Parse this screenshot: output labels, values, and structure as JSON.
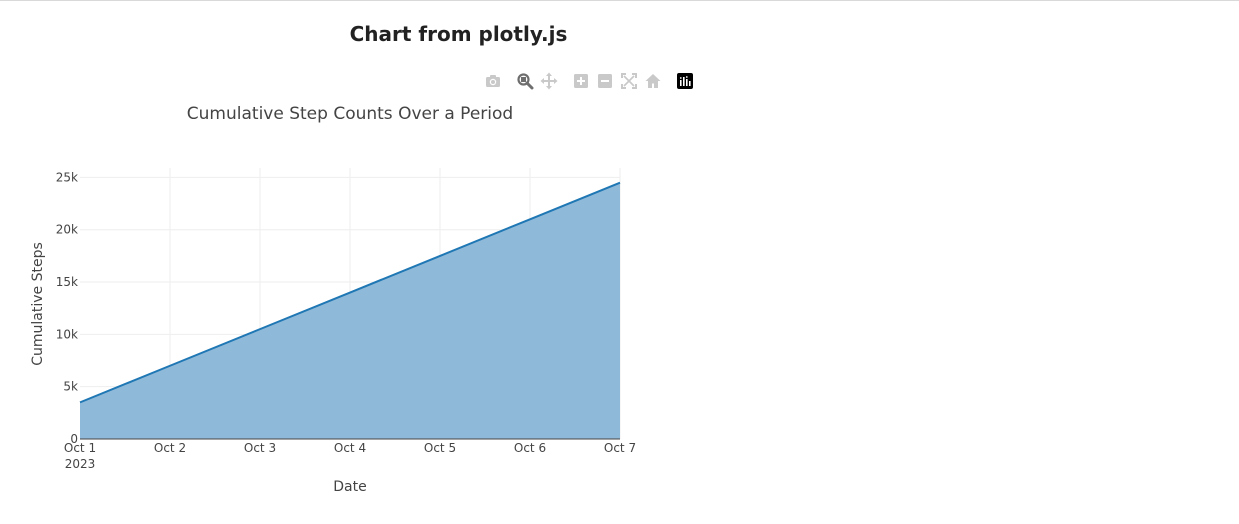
{
  "page": {
    "heading": "Chart from plotly.js"
  },
  "modebar": {
    "buttons": [
      {
        "name": "camera-icon"
      },
      {
        "name": "zoom-icon"
      },
      {
        "name": "pan-icon"
      },
      {
        "name": "zoom-in-icon"
      },
      {
        "name": "zoom-out-icon"
      },
      {
        "name": "autoscale-icon"
      },
      {
        "name": "reset-axes-icon"
      },
      {
        "name": "plotly-logo-icon"
      }
    ],
    "colors": {
      "inactive": "#c9c9c9",
      "active": "#6e6e6e",
      "logo": "#000000"
    }
  },
  "chart_data": {
    "type": "area",
    "title": "Cumulative Step Counts Over a Period",
    "xlabel": "Date",
    "ylabel": "Cumulative Steps",
    "x": [
      "2023-10-01",
      "2023-10-02",
      "2023-10-03",
      "2023-10-04",
      "2023-10-05",
      "2023-10-06",
      "2023-10-07"
    ],
    "x_tick_labels": [
      "Oct 1",
      "Oct 2",
      "Oct 3",
      "Oct 4",
      "Oct 5",
      "Oct 6",
      "Oct 7"
    ],
    "x_year_label": "2023",
    "series": [
      {
        "values": [
          3500,
          7000,
          10500,
          14000,
          17500,
          21000,
          24500
        ],
        "line_color": "#1f77b4",
        "fill_color": "#8fb9d9"
      }
    ],
    "ylim": [
      0,
      25900
    ],
    "y_ticks": [
      0,
      5000,
      10000,
      15000,
      20000,
      25000
    ],
    "y_tick_labels": [
      "0",
      "5k",
      "10k",
      "15k",
      "20k",
      "25k"
    ],
    "grid": true,
    "legend": "none"
  }
}
